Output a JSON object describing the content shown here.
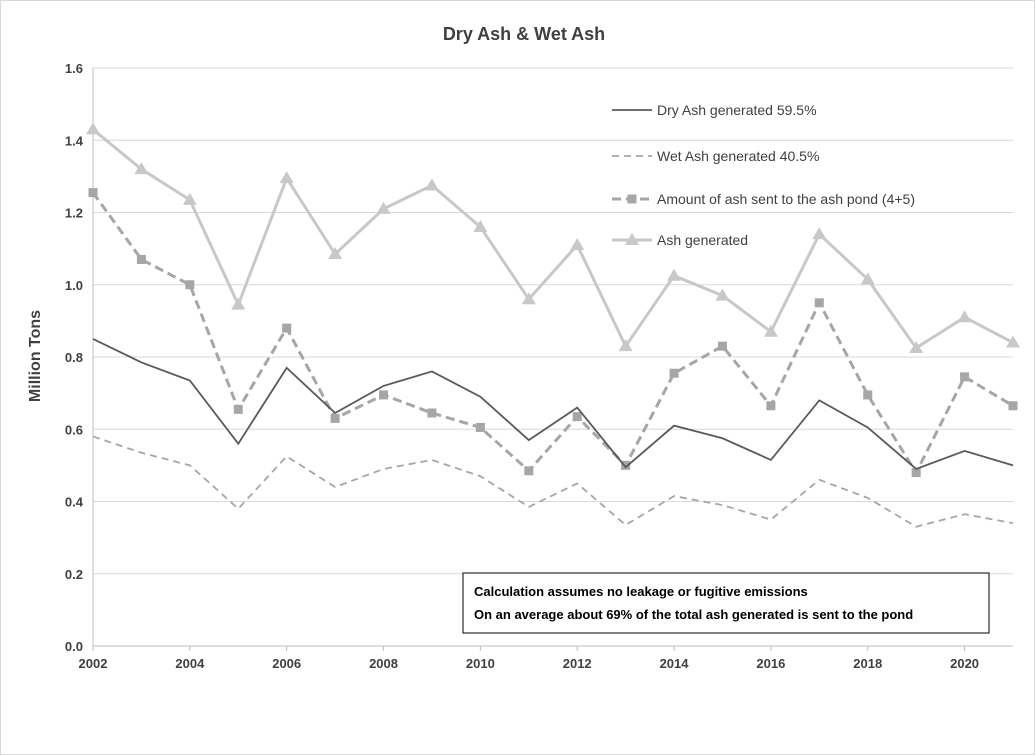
{
  "chart_data": {
    "type": "line",
    "title": "Dry Ash & Wet Ash",
    "ylabel": "Million Tons",
    "xlabel": "",
    "xlim": [
      2002,
      2021
    ],
    "ylim": [
      0,
      1.6
    ],
    "xticks": [
      "2002",
      "2004",
      "2006",
      "2008",
      "2010",
      "2012",
      "2014",
      "2016",
      "2018",
      "2020"
    ],
    "yticks": [
      "0.0",
      "0.2",
      "0.4",
      "0.6",
      "0.8",
      "1.0",
      "1.2",
      "1.4",
      "1.6"
    ],
    "grid": "horizontal",
    "legend_position": "top-right",
    "x": [
      2002,
      2003,
      2004,
      2005,
      2006,
      2007,
      2008,
      2009,
      2010,
      2011,
      2012,
      2013,
      2014,
      2015,
      2016,
      2017,
      2018,
      2019,
      2020,
      2021
    ],
    "series": [
      {
        "name": "Dry Ash generated 59.5%",
        "color": "#595959",
        "style": "solid",
        "values": [
          0.85,
          0.785,
          0.735,
          0.56,
          0.77,
          0.645,
          0.72,
          0.76,
          0.69,
          0.57,
          0.66,
          0.495,
          0.61,
          0.575,
          0.515,
          0.68,
          0.605,
          0.49,
          0.54,
          0.5
        ]
      },
      {
        "name": "Wet Ash generated 40.5%",
        "color": "#a6a6a6",
        "style": "dashed",
        "values": [
          0.58,
          0.535,
          0.5,
          0.38,
          0.525,
          0.44,
          0.49,
          0.515,
          0.47,
          0.385,
          0.45,
          0.335,
          0.415,
          0.39,
          0.35,
          0.46,
          0.41,
          0.33,
          0.365,
          0.34
        ]
      },
      {
        "name": "Amount of ash sent to the ash pond (4+5)",
        "color": "#a6a6a6",
        "style": "dashed-square",
        "values": [
          1.255,
          1.07,
          1.0,
          0.655,
          0.88,
          0.63,
          0.695,
          0.645,
          0.605,
          0.485,
          0.635,
          0.5,
          0.755,
          0.83,
          0.665,
          0.95,
          0.695,
          0.48,
          0.745,
          0.665
        ]
      },
      {
        "name": "Ash generated",
        "color": "#c8c8c8",
        "style": "solid-triangle",
        "values": [
          1.43,
          1.32,
          1.235,
          0.945,
          1.295,
          1.085,
          1.21,
          1.275,
          1.16,
          0.96,
          1.11,
          0.83,
          1.025,
          0.97,
          0.87,
          1.14,
          1.015,
          0.825,
          0.91,
          0.84
        ]
      }
    ],
    "annotation": {
      "line1": "Calculation assumes no leakage or fugitive emissions",
      "line2": "On an average about 69% of the total ash generated is sent to the pond"
    }
  }
}
